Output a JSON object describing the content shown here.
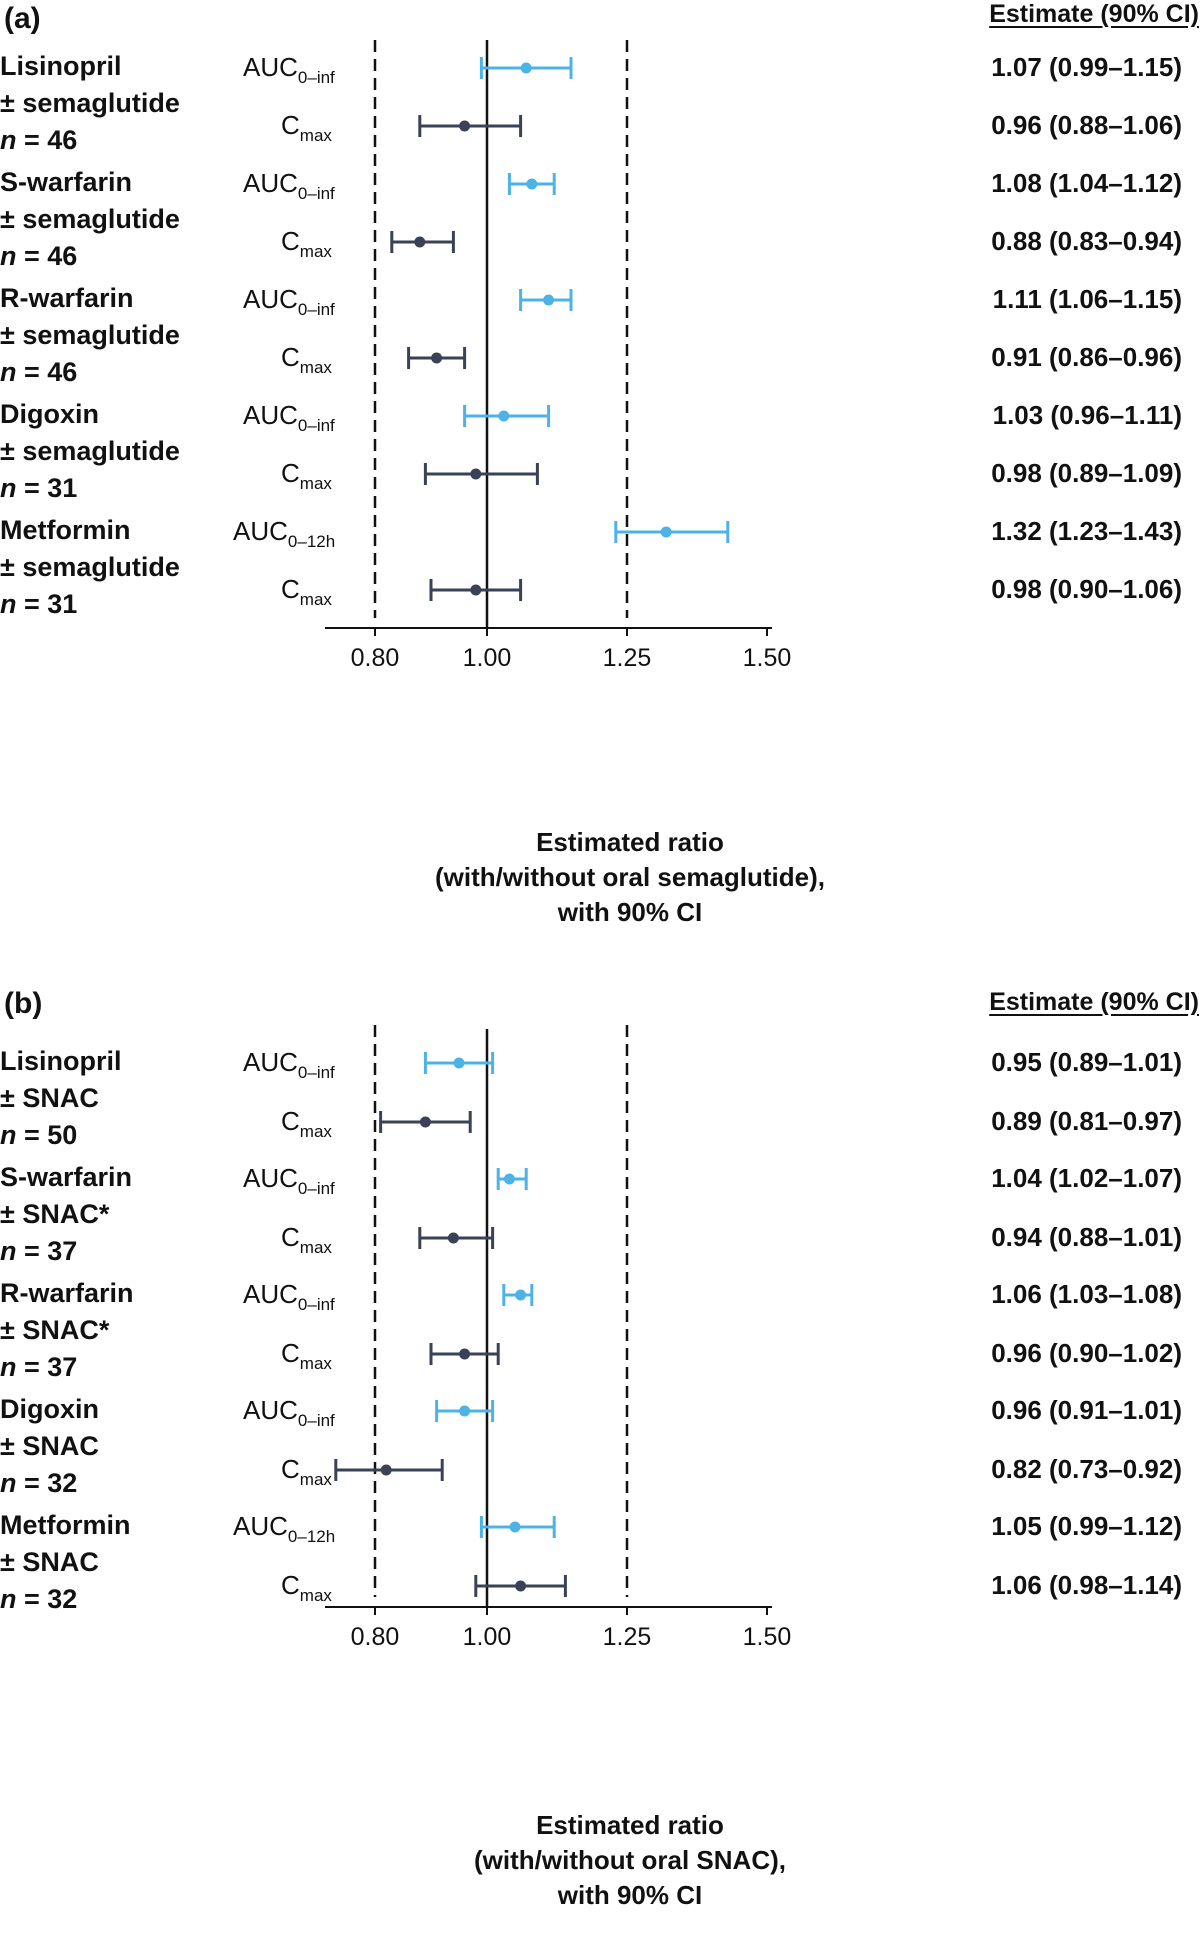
{
  "chart_data": [
    {
      "type": "forest",
      "panel_label": "(a)",
      "estimate_header": "Estimate (90% CI)",
      "xlabel": [
        "Estimated ratio",
        "(with/without oral semaglutide),",
        "with 90% CI"
      ],
      "xlim": [
        0.75,
        1.5
      ],
      "xticks": [
        0.8,
        1.0,
        1.25,
        1.5
      ],
      "xtick_labels": [
        "0.80",
        "1.00",
        "1.25",
        "1.50"
      ],
      "reference_line": 1.0,
      "dashed_lines": [
        0.8,
        1.25
      ],
      "colors": {
        "auc": "#4db3e6",
        "cmax": "#3a4256"
      },
      "groups": [
        {
          "drug": "Lisinopril",
          "comparison": "± semaglutide",
          "n_label": "n",
          "n_value": "= 46",
          "rows": [
            {
              "metric": "AUC",
              "metric_sub": "0–inf",
              "kind": "auc",
              "estimate": 1.07,
              "low": 0.99,
              "high": 1.15,
              "text": "1.07 (0.99–1.15)"
            },
            {
              "metric": "C",
              "metric_sub": "max",
              "kind": "cmax",
              "estimate": 0.96,
              "low": 0.88,
              "high": 1.06,
              "text": "0.96 (0.88–1.06)"
            }
          ]
        },
        {
          "drug": "S-warfarin",
          "comparison": "± semaglutide",
          "n_label": "n",
          "n_value": "= 46",
          "rows": [
            {
              "metric": "AUC",
              "metric_sub": "0–inf",
              "kind": "auc",
              "estimate": 1.08,
              "low": 1.04,
              "high": 1.12,
              "text": "1.08 (1.04–1.12)"
            },
            {
              "metric": "C",
              "metric_sub": "max",
              "kind": "cmax",
              "estimate": 0.88,
              "low": 0.83,
              "high": 0.94,
              "text": "0.88 (0.83–0.94)"
            }
          ]
        },
        {
          "drug": "R-warfarin",
          "comparison": "± semaglutide",
          "n_label": "n",
          "n_value": "= 46",
          "rows": [
            {
              "metric": "AUC",
              "metric_sub": "0–inf",
              "kind": "auc",
              "estimate": 1.11,
              "low": 1.06,
              "high": 1.15,
              "text": "1.11 (1.06–1.15)"
            },
            {
              "metric": "C",
              "metric_sub": "max",
              "kind": "cmax",
              "estimate": 0.91,
              "low": 0.86,
              "high": 0.96,
              "text": "0.91 (0.86–0.96)"
            }
          ]
        },
        {
          "drug": "Digoxin",
          "comparison": "± semaglutide",
          "n_label": "n",
          "n_value": "= 31",
          "rows": [
            {
              "metric": "AUC",
              "metric_sub": "0–inf",
              "kind": "auc",
              "estimate": 1.03,
              "low": 0.96,
              "high": 1.11,
              "text": "1.03 (0.96–1.11)"
            },
            {
              "metric": "C",
              "metric_sub": "max",
              "kind": "cmax",
              "estimate": 0.98,
              "low": 0.89,
              "high": 1.09,
              "text": "0.98 (0.89–1.09)"
            }
          ]
        },
        {
          "drug": "Metformin",
          "comparison": "± semaglutide",
          "n_label": "n",
          "n_value": "= 31",
          "rows": [
            {
              "metric": "AUC",
              "metric_sub": "0–12h",
              "kind": "auc",
              "estimate": 1.32,
              "low": 1.23,
              "high": 1.43,
              "text": "1.32 (1.23–1.43)"
            },
            {
              "metric": "C",
              "metric_sub": "max",
              "kind": "cmax",
              "estimate": 0.98,
              "low": 0.9,
              "high": 1.06,
              "text": "0.98 (0.90–1.06)"
            }
          ]
        }
      ]
    },
    {
      "type": "forest",
      "panel_label": "(b)",
      "estimate_header": "Estimate (90% CI)",
      "xlabel": [
        "Estimated ratio",
        "(with/without oral SNAC),",
        "with 90% CI"
      ],
      "xlim": [
        0.75,
        1.5
      ],
      "xticks": [
        0.8,
        1.0,
        1.25,
        1.5
      ],
      "xtick_labels": [
        "0.80",
        "1.00",
        "1.25",
        "1.50"
      ],
      "reference_line": 1.0,
      "dashed_lines": [
        0.8,
        1.25
      ],
      "colors": {
        "auc": "#4db3e6",
        "cmax": "#3a4256"
      },
      "groups": [
        {
          "drug": "Lisinopril",
          "comparison": "± SNAC",
          "n_label": "n",
          "n_value": "= 50",
          "rows": [
            {
              "metric": "AUC",
              "metric_sub": "0–inf",
              "kind": "auc",
              "estimate": 0.95,
              "low": 0.89,
              "high": 1.01,
              "text": "0.95 (0.89–1.01)"
            },
            {
              "metric": "C",
              "metric_sub": "max",
              "kind": "cmax",
              "estimate": 0.89,
              "low": 0.81,
              "high": 0.97,
              "text": "0.89 (0.81–0.97)"
            }
          ]
        },
        {
          "drug": "S-warfarin",
          "comparison": "± SNAC*",
          "n_label": "n",
          "n_value": "= 37",
          "rows": [
            {
              "metric": "AUC",
              "metric_sub": "0–inf",
              "kind": "auc",
              "estimate": 1.04,
              "low": 1.02,
              "high": 1.07,
              "text": "1.04 (1.02–1.07)"
            },
            {
              "metric": "C",
              "metric_sub": "max",
              "kind": "cmax",
              "estimate": 0.94,
              "low": 0.88,
              "high": 1.01,
              "text": "0.94 (0.88–1.01)"
            }
          ]
        },
        {
          "drug": "R-warfarin",
          "comparison": "± SNAC*",
          "n_label": "n",
          "n_value": "= 37",
          "rows": [
            {
              "metric": "AUC",
              "metric_sub": "0–inf",
              "kind": "auc",
              "estimate": 1.06,
              "low": 1.03,
              "high": 1.08,
              "text": "1.06 (1.03–1.08)"
            },
            {
              "metric": "C",
              "metric_sub": "max",
              "kind": "cmax",
              "estimate": 0.96,
              "low": 0.9,
              "high": 1.02,
              "text": "0.96 (0.90–1.02)"
            }
          ]
        },
        {
          "drug": "Digoxin",
          "comparison": "± SNAC",
          "n_label": "n",
          "n_value": "= 32",
          "rows": [
            {
              "metric": "AUC",
              "metric_sub": "0–inf",
              "kind": "auc",
              "estimate": 0.96,
              "low": 0.91,
              "high": 1.01,
              "text": "0.96 (0.91–1.01)"
            },
            {
              "metric": "C",
              "metric_sub": "max",
              "kind": "cmax",
              "estimate": 0.82,
              "low": 0.73,
              "high": 0.92,
              "text": "0.82 (0.73–0.92)"
            }
          ]
        },
        {
          "drug": "Metformin",
          "comparison": "± SNAC",
          "n_label": "n",
          "n_value": "= 32",
          "rows": [
            {
              "metric": "AUC",
              "metric_sub": "0–12h",
              "kind": "auc",
              "estimate": 1.05,
              "low": 0.99,
              "high": 1.12,
              "text": "1.05 (0.99–1.12)"
            },
            {
              "metric": "C",
              "metric_sub": "max",
              "kind": "cmax",
              "estimate": 1.06,
              "low": 0.98,
              "high": 1.14,
              "text": "1.06 (0.98–1.14)"
            }
          ]
        }
      ]
    }
  ]
}
